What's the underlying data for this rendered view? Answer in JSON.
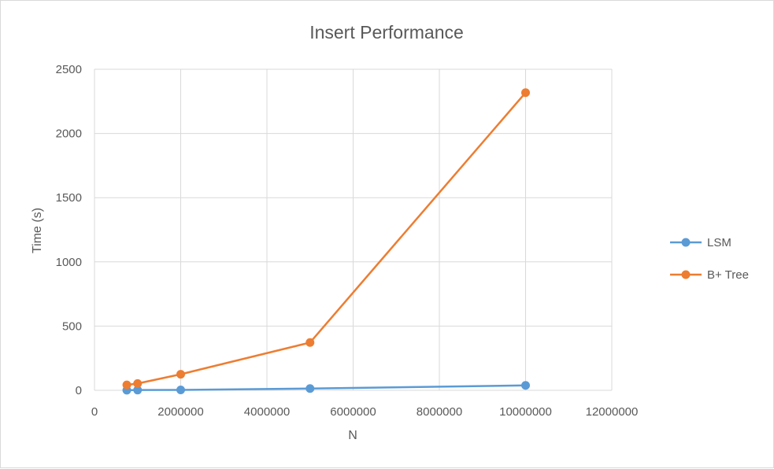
{
  "chart_data": {
    "type": "scatter",
    "title": "Insert Performance",
    "xlabel": "N",
    "ylabel": "Time (s)",
    "xlim": [
      0,
      12000000
    ],
    "ylim": [
      0,
      2500
    ],
    "x_ticks": [
      0,
      2000000,
      4000000,
      6000000,
      8000000,
      10000000,
      12000000
    ],
    "y_ticks": [
      0,
      500,
      1000,
      1500,
      2000,
      2500
    ],
    "grid": true,
    "legend_position": "right",
    "series": [
      {
        "name": "LSM",
        "color": "#5b9bd5",
        "points": [
          [
            750000,
            1
          ],
          [
            1000000,
            2
          ],
          [
            2000000,
            3
          ],
          [
            5000000,
            14
          ],
          [
            10000000,
            38
          ]
        ]
      },
      {
        "name": "B+ Tree",
        "color": "#ed7d31",
        "points": [
          [
            750000,
            42
          ],
          [
            1000000,
            53
          ],
          [
            2000000,
            125
          ],
          [
            5000000,
            372
          ],
          [
            10000000,
            2318
          ]
        ]
      }
    ]
  }
}
